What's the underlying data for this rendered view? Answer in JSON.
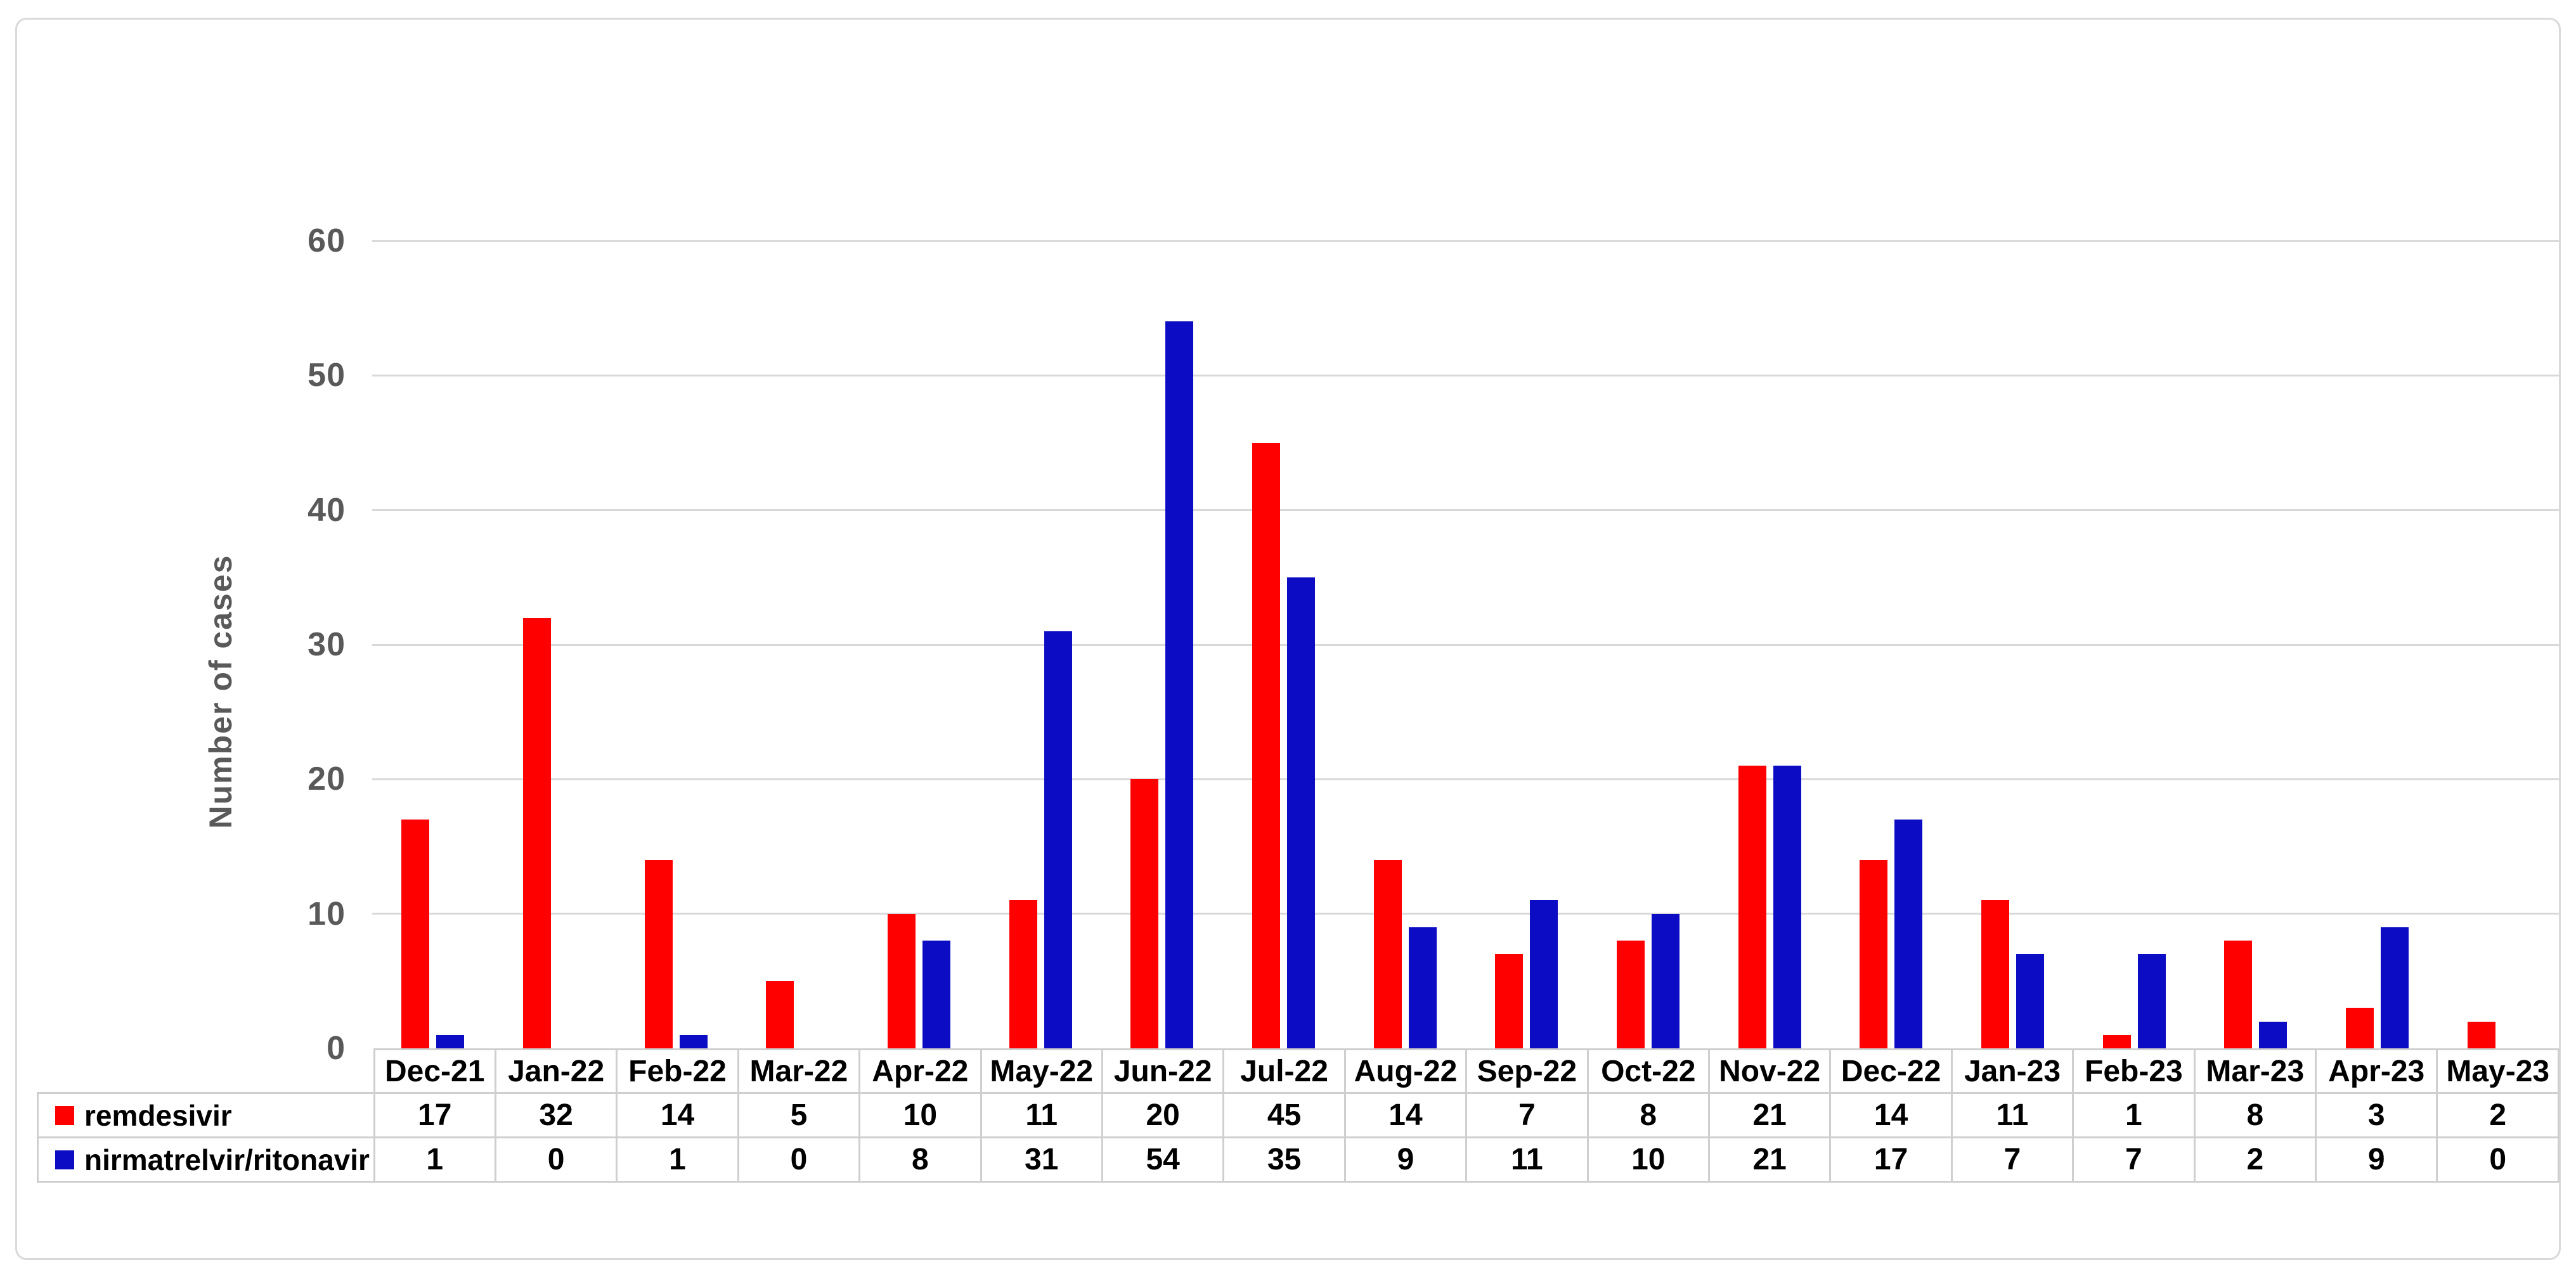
{
  "chart_data": {
    "type": "bar",
    "title": "",
    "xlabel": "",
    "ylabel": "Number of cases",
    "ylim": [
      0,
      60
    ],
    "ytick_interval": 10,
    "ytick_labels": [
      "0",
      "10",
      "20",
      "30",
      "40",
      "50",
      "60"
    ],
    "grid": "horizontal",
    "legend_position": "table-row-headers",
    "categories": [
      "Dec-21",
      "Jan-22",
      "Feb-22",
      "Mar-22",
      "Apr-22",
      "May-22",
      "Jun-22",
      "Jul-22",
      "Aug-22",
      "Sep-22",
      "Oct-22",
      "Nov-22",
      "Dec-22",
      "Jan-23",
      "Feb-23",
      "Mar-23",
      "Apr-23",
      "May-23"
    ],
    "series": [
      {
        "name": "remdesivir",
        "color": "#FF0000",
        "values": [
          17,
          32,
          14,
          5,
          10,
          11,
          20,
          45,
          14,
          7,
          8,
          21,
          14,
          11,
          1,
          8,
          3,
          2
        ]
      },
      {
        "name": "nirmatrelvir/ritonavir",
        "color": "#0C0CC4",
        "values": [
          1,
          0,
          1,
          0,
          8,
          31,
          54,
          35,
          9,
          11,
          10,
          21,
          17,
          7,
          7,
          2,
          9,
          0
        ]
      }
    ]
  },
  "colors": {
    "background": "#ffffff",
    "frame_border": "#d9d9d9",
    "gridline": "#d9d9d9",
    "table_border": "#cfcfcf",
    "axis_text": "#595959",
    "table_text": "#000000"
  }
}
